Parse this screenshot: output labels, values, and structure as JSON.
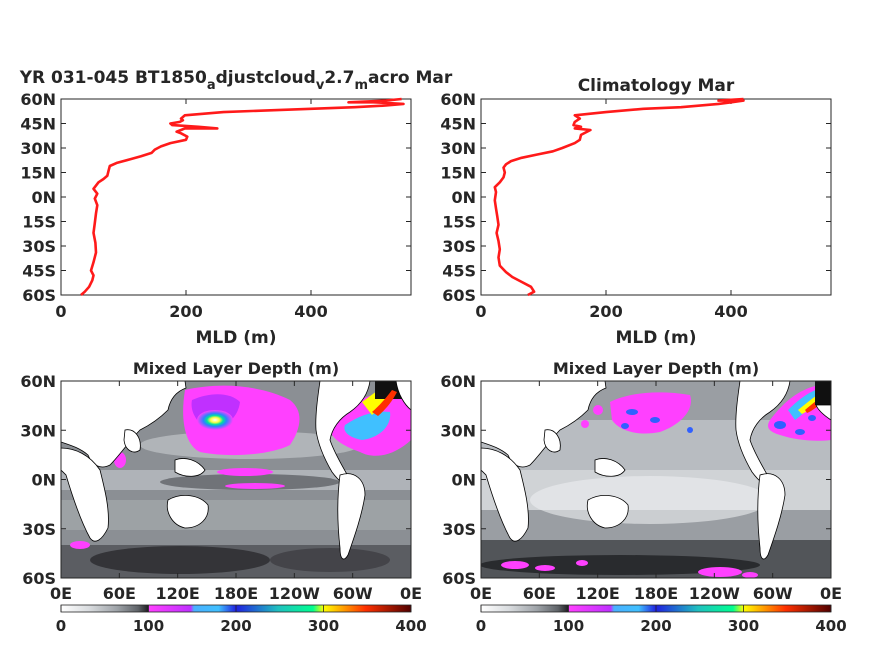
{
  "chart_data": [
    {
      "type": "line",
      "title_main": "YR 031-045 BT1850",
      "title_parts": [
        {
          "text": "a",
          "sub": true
        },
        {
          "text": "djustcloud",
          "sub": false
        },
        {
          "text": "v",
          "sub": true
        },
        {
          "text": "2.7",
          "sub": false
        },
        {
          "text": "m",
          "sub": true
        },
        {
          "text": "acro Mar",
          "sub": false
        }
      ],
      "xlabel": "MLD (m)",
      "xlim": [
        0,
        560
      ],
      "ylim": [
        -60,
        60
      ],
      "xticks": [
        {
          "v": 0,
          "label": "0"
        },
        {
          "v": 200,
          "label": "200"
        },
        {
          "v": 400,
          "label": "400"
        }
      ],
      "yticks": [
        {
          "v": 60,
          "label": "60N"
        },
        {
          "v": 45,
          "label": "45N"
        },
        {
          "v": 30,
          "label": "30N"
        },
        {
          "v": 15,
          "label": "15N"
        },
        {
          "v": 0,
          "label": "0N"
        },
        {
          "v": -15,
          "label": "15S"
        },
        {
          "v": -30,
          "label": "30S"
        },
        {
          "v": -45,
          "label": "45S"
        },
        {
          "v": -60,
          "label": "60S"
        }
      ],
      "color": "#ff1a1a",
      "points": [
        [
          32,
          -60
        ],
        [
          38,
          -58
        ],
        [
          45,
          -55
        ],
        [
          50,
          -51
        ],
        [
          52,
          -48
        ],
        [
          48,
          -45
        ],
        [
          52,
          -40
        ],
        [
          56,
          -34
        ],
        [
          55,
          -28
        ],
        [
          52,
          -22
        ],
        [
          54,
          -16
        ],
        [
          56,
          -10
        ],
        [
          58,
          -5
        ],
        [
          54,
          -1
        ],
        [
          58,
          2
        ],
        [
          52,
          5
        ],
        [
          56,
          7
        ],
        [
          60,
          9
        ],
        [
          68,
          11
        ],
        [
          74,
          13
        ],
        [
          76,
          16
        ],
        [
          78,
          19
        ],
        [
          90,
          21
        ],
        [
          110,
          23
        ],
        [
          128,
          25
        ],
        [
          145,
          27
        ],
        [
          150,
          29
        ],
        [
          160,
          31
        ],
        [
          175,
          33
        ],
        [
          200,
          35
        ],
        [
          202,
          37
        ],
        [
          192,
          39
        ],
        [
          185,
          40
        ],
        [
          192,
          41
        ],
        [
          198,
          42
        ],
        [
          250,
          42
        ],
        [
          220,
          43
        ],
        [
          178,
          44
        ],
        [
          175,
          45
        ],
        [
          190,
          46
        ],
        [
          195,
          47
        ],
        [
          192,
          48
        ],
        [
          195,
          49
        ],
        [
          198,
          50
        ],
        [
          260,
          52
        ],
        [
          330,
          53
        ],
        [
          400,
          54
        ],
        [
          470,
          55
        ],
        [
          520,
          56
        ],
        [
          548,
          57
        ],
        [
          500,
          58
        ],
        [
          460,
          58
        ],
        [
          520,
          59
        ],
        [
          545,
          60
        ]
      ]
    },
    {
      "type": "line",
      "title": "Climatology Mar",
      "xlabel": "MLD (m)",
      "xlim": [
        0,
        560
      ],
      "ylim": [
        -60,
        60
      ],
      "xticks": [
        {
          "v": 0,
          "label": "0"
        },
        {
          "v": 200,
          "label": "200"
        },
        {
          "v": 400,
          "label": "400"
        }
      ],
      "yticks": [
        {
          "v": 60,
          "label": "60N"
        },
        {
          "v": 45,
          "label": "45N"
        },
        {
          "v": 30,
          "label": "30N"
        },
        {
          "v": 15,
          "label": "15N"
        },
        {
          "v": 0,
          "label": "0N"
        },
        {
          "v": -15,
          "label": "15S"
        },
        {
          "v": -30,
          "label": "30S"
        },
        {
          "v": -45,
          "label": "45S"
        },
        {
          "v": -60,
          "label": "60S"
        }
      ],
      "color": "#ff1a1a",
      "points": [
        [
          75,
          -60
        ],
        [
          85,
          -58
        ],
        [
          80,
          -55
        ],
        [
          65,
          -52
        ],
        [
          50,
          -49
        ],
        [
          40,
          -46
        ],
        [
          30,
          -42
        ],
        [
          28,
          -37
        ],
        [
          30,
          -32
        ],
        [
          28,
          -27
        ],
        [
          25,
          -22
        ],
        [
          28,
          -17
        ],
        [
          26,
          -12
        ],
        [
          24,
          -7
        ],
        [
          22,
          -2
        ],
        [
          24,
          3
        ],
        [
          22,
          6
        ],
        [
          30,
          9
        ],
        [
          36,
          12
        ],
        [
          38,
          15
        ],
        [
          36,
          18
        ],
        [
          40,
          20
        ],
        [
          48,
          22
        ],
        [
          65,
          24
        ],
        [
          90,
          26
        ],
        [
          115,
          28
        ],
        [
          130,
          30
        ],
        [
          150,
          33
        ],
        [
          158,
          35
        ],
        [
          160,
          38
        ],
        [
          175,
          41
        ],
        [
          150,
          42
        ],
        [
          160,
          43
        ],
        [
          148,
          44
        ],
        [
          150,
          46
        ],
        [
          158,
          48
        ],
        [
          150,
          50
        ],
        [
          200,
          52
        ],
        [
          260,
          54
        ],
        [
          320,
          55
        ],
        [
          380,
          57
        ],
        [
          400,
          58
        ],
        [
          420,
          59
        ],
        [
          380,
          59
        ],
        [
          420,
          60
        ]
      ]
    },
    {
      "type": "heatmap",
      "title": "Mixed Layer Depth (m)",
      "xticks": [
        "0E",
        "60E",
        "120E",
        "180E",
        "120W",
        "60W",
        "0E"
      ],
      "yticks": [
        "60N",
        "30N",
        "0N",
        "30S",
        "60S"
      ],
      "colorbar_ticks": [
        "0",
        "100",
        "200",
        "300",
        "400"
      ],
      "clim": [
        0,
        400
      ],
      "colormap_stops": [
        "#ffffff",
        "#d9d9d9",
        "#a0a0a0",
        "#606060",
        "#202020",
        "#ff40ff",
        "#c000ff",
        "#40c0ff",
        "#2020ff",
        "#00ffa0",
        "#ffff00",
        "#ff4000",
        "#600000"
      ]
    },
    {
      "type": "heatmap",
      "title": "Mixed Layer Depth (m)",
      "xticks": [
        "0E",
        "60E",
        "120E",
        "180E",
        "120W",
        "60W",
        "0E"
      ],
      "yticks": [
        "60N",
        "30N",
        "0N",
        "30S",
        "60S"
      ],
      "colorbar_ticks": [
        "0",
        "100",
        "200",
        "300",
        "400"
      ],
      "clim": [
        0,
        400
      ],
      "colormap_stops": [
        "#ffffff",
        "#d9d9d9",
        "#a0a0a0",
        "#606060",
        "#202020",
        "#ff40ff",
        "#c000ff",
        "#40c0ff",
        "#2020ff",
        "#00ffa0",
        "#ffff00",
        "#ff4000",
        "#600000"
      ]
    }
  ]
}
